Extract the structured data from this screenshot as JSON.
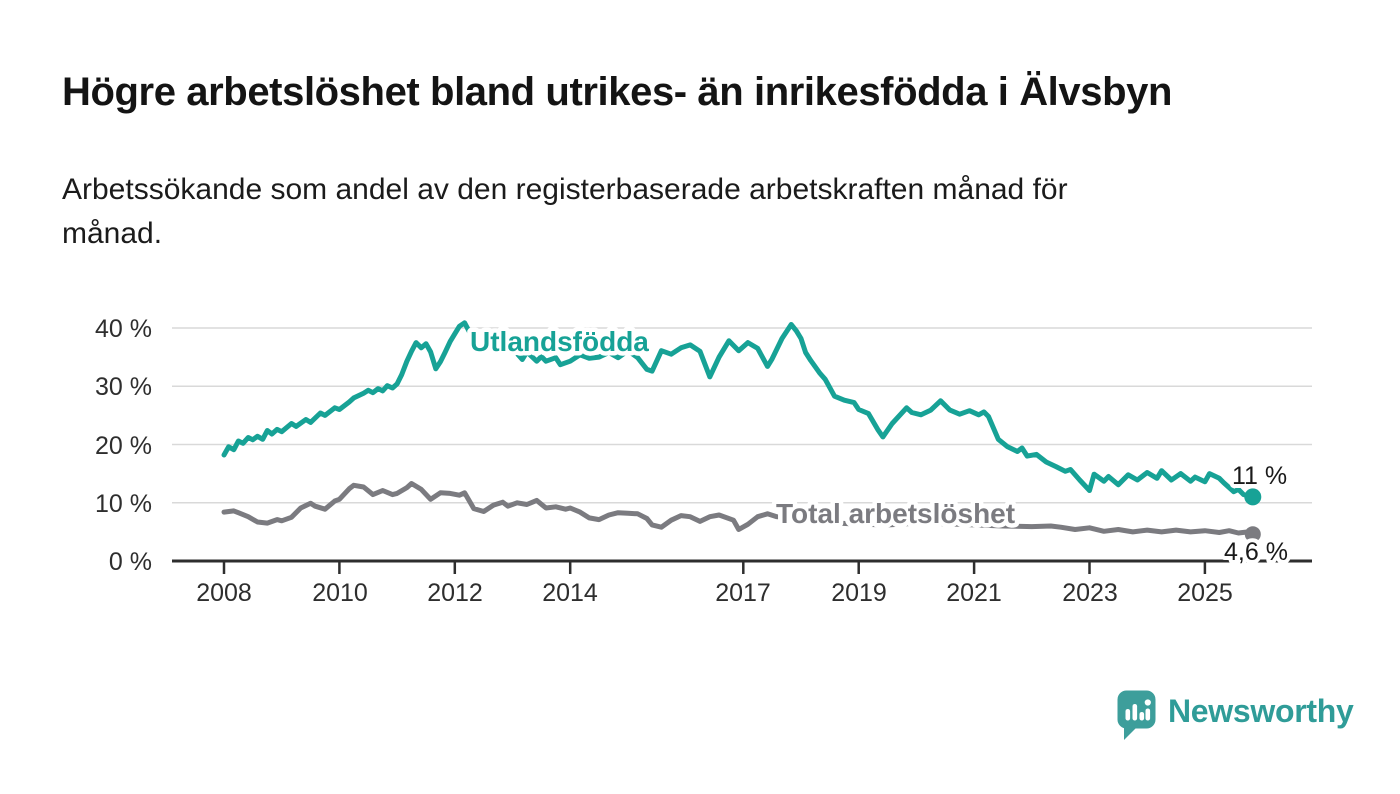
{
  "chart_data": {
    "type": "line",
    "title": "Högre arbetslöshet bland utrikes- än inrikesfödda i Älvsbyn",
    "subtitle": "Arbetssökande som andel av den registerbaserade arbetskraften månad för månad.",
    "subtitle_lines": [
      "Arbetssökande som andel av den registerbaserade arbetskraften månad för",
      "månad."
    ],
    "unit": "%",
    "x_tick_labels": [
      "2008",
      "2010",
      "2012",
      "2014",
      "2017",
      "2019",
      "2021",
      "2023",
      "2025"
    ],
    "x_ticks_years": [
      2008,
      2010,
      2012,
      2014,
      2017,
      2019,
      2021,
      2023,
      2025
    ],
    "y_tick_labels": [
      "40 %",
      "30 %",
      "20 %",
      "10 %",
      "0 %"
    ],
    "y_ticks": [
      40,
      30,
      20,
      10,
      0
    ],
    "ylim": [
      0,
      42
    ],
    "x_range": [
      2008.0,
      2025.92
    ],
    "grid_color": "#d9d9d9",
    "axis_color": "#2e2e2e",
    "series": [
      {
        "name": "Utlandsfödda",
        "line_label": "Utlandsfödda",
        "color": "#17A296",
        "end_label": "11 %",
        "last_value": 11.0,
        "points": [
          [
            2008.0,
            18.2
          ],
          [
            2008.08,
            19.6
          ],
          [
            2008.17,
            19.1
          ],
          [
            2008.25,
            20.6
          ],
          [
            2008.33,
            20.2
          ],
          [
            2008.42,
            21.2
          ],
          [
            2008.5,
            20.8
          ],
          [
            2008.58,
            21.4
          ],
          [
            2008.67,
            20.9
          ],
          [
            2008.75,
            22.4
          ],
          [
            2008.83,
            21.8
          ],
          [
            2008.92,
            22.6
          ],
          [
            2009.0,
            22.2
          ],
          [
            2009.17,
            23.6
          ],
          [
            2009.25,
            23.1
          ],
          [
            2009.42,
            24.3
          ],
          [
            2009.5,
            23.8
          ],
          [
            2009.67,
            25.4
          ],
          [
            2009.75,
            25.0
          ],
          [
            2009.92,
            26.3
          ],
          [
            2010.0,
            26.0
          ],
          [
            2010.17,
            27.3
          ],
          [
            2010.25,
            28.0
          ],
          [
            2010.42,
            28.8
          ],
          [
            2010.5,
            29.3
          ],
          [
            2010.58,
            28.9
          ],
          [
            2010.67,
            29.6
          ],
          [
            2010.75,
            29.2
          ],
          [
            2010.83,
            30.1
          ],
          [
            2010.92,
            29.7
          ],
          [
            2011.0,
            30.4
          ],
          [
            2011.08,
            32.0
          ],
          [
            2011.17,
            34.3
          ],
          [
            2011.25,
            36.0
          ],
          [
            2011.33,
            37.5
          ],
          [
            2011.42,
            36.6
          ],
          [
            2011.5,
            37.3
          ],
          [
            2011.58,
            35.9
          ],
          [
            2011.67,
            33.0
          ],
          [
            2011.75,
            34.2
          ],
          [
            2011.83,
            35.8
          ],
          [
            2011.92,
            37.7
          ],
          [
            2012.0,
            39.0
          ],
          [
            2012.08,
            40.3
          ],
          [
            2012.17,
            40.9
          ],
          [
            2012.25,
            39.4
          ],
          [
            2012.33,
            38.1
          ],
          [
            2012.42,
            38.8
          ],
          [
            2012.5,
            36.8
          ],
          [
            2012.58,
            38.3
          ],
          [
            2012.67,
            36.7
          ],
          [
            2012.75,
            37.2
          ],
          [
            2012.83,
            35.9
          ],
          [
            2012.92,
            37.3
          ],
          [
            2013.0,
            36.5
          ],
          [
            2013.17,
            34.6
          ],
          [
            2013.25,
            35.9
          ],
          [
            2013.42,
            34.3
          ],
          [
            2013.5,
            35.1
          ],
          [
            2013.58,
            34.3
          ],
          [
            2013.75,
            34.9
          ],
          [
            2013.83,
            33.7
          ],
          [
            2014.0,
            34.3
          ],
          [
            2014.17,
            35.4
          ],
          [
            2014.33,
            34.8
          ],
          [
            2014.5,
            35.0
          ],
          [
            2014.67,
            35.8
          ],
          [
            2014.83,
            34.9
          ],
          [
            2015.0,
            36.1
          ],
          [
            2015.17,
            34.9
          ],
          [
            2015.33,
            32.9
          ],
          [
            2015.42,
            32.6
          ],
          [
            2015.58,
            36.1
          ],
          [
            2015.75,
            35.5
          ],
          [
            2015.92,
            36.6
          ],
          [
            2016.08,
            37.1
          ],
          [
            2016.25,
            36.0
          ],
          [
            2016.42,
            31.6
          ],
          [
            2016.58,
            35.0
          ],
          [
            2016.75,
            37.8
          ],
          [
            2016.92,
            36.1
          ],
          [
            2017.08,
            37.5
          ],
          [
            2017.25,
            36.5
          ],
          [
            2017.42,
            33.4
          ],
          [
            2017.5,
            34.7
          ],
          [
            2017.67,
            38.2
          ],
          [
            2017.83,
            40.6
          ],
          [
            2017.92,
            39.5
          ],
          [
            2018.0,
            38.2
          ],
          [
            2018.08,
            35.8
          ],
          [
            2018.17,
            34.4
          ],
          [
            2018.33,
            32.2
          ],
          [
            2018.42,
            31.2
          ],
          [
            2018.58,
            28.3
          ],
          [
            2018.75,
            27.6
          ],
          [
            2018.92,
            27.2
          ],
          [
            2019.0,
            26.0
          ],
          [
            2019.17,
            25.3
          ],
          [
            2019.33,
            22.6
          ],
          [
            2019.42,
            21.3
          ],
          [
            2019.58,
            23.6
          ],
          [
            2019.83,
            26.3
          ],
          [
            2019.92,
            25.5
          ],
          [
            2020.08,
            25.1
          ],
          [
            2020.25,
            25.9
          ],
          [
            2020.42,
            27.5
          ],
          [
            2020.58,
            25.9
          ],
          [
            2020.75,
            25.2
          ],
          [
            2020.92,
            25.8
          ],
          [
            2021.08,
            25.1
          ],
          [
            2021.17,
            25.6
          ],
          [
            2021.25,
            24.8
          ],
          [
            2021.42,
            20.9
          ],
          [
            2021.58,
            19.6
          ],
          [
            2021.75,
            18.8
          ],
          [
            2021.83,
            19.4
          ],
          [
            2021.92,
            18.0
          ],
          [
            2022.08,
            18.3
          ],
          [
            2022.25,
            17.0
          ],
          [
            2022.42,
            16.2
          ],
          [
            2022.58,
            15.4
          ],
          [
            2022.67,
            15.7
          ],
          [
            2022.83,
            13.9
          ],
          [
            2023.0,
            12.1
          ],
          [
            2023.08,
            14.9
          ],
          [
            2023.25,
            13.7
          ],
          [
            2023.33,
            14.5
          ],
          [
            2023.5,
            13.1
          ],
          [
            2023.67,
            14.8
          ],
          [
            2023.83,
            13.9
          ],
          [
            2024.0,
            15.2
          ],
          [
            2024.17,
            14.2
          ],
          [
            2024.25,
            15.5
          ],
          [
            2024.42,
            13.9
          ],
          [
            2024.58,
            15.0
          ],
          [
            2024.75,
            13.7
          ],
          [
            2024.83,
            14.4
          ],
          [
            2025.0,
            13.6
          ],
          [
            2025.08,
            15.0
          ],
          [
            2025.25,
            14.2
          ],
          [
            2025.33,
            13.4
          ],
          [
            2025.5,
            11.9
          ],
          [
            2025.58,
            12.3
          ],
          [
            2025.67,
            11.4
          ],
          [
            2025.83,
            11.0
          ]
        ]
      },
      {
        "name": "Total arbetslöshet",
        "line_label": "Total arbetslöshet",
        "color": "#7B7B80",
        "end_label": "4,6 %",
        "last_value": 4.6,
        "points": [
          [
            2008.0,
            8.4
          ],
          [
            2008.17,
            8.6
          ],
          [
            2008.25,
            8.3
          ],
          [
            2008.42,
            7.6
          ],
          [
            2008.58,
            6.7
          ],
          [
            2008.75,
            6.5
          ],
          [
            2008.92,
            7.1
          ],
          [
            2009.0,
            6.9
          ],
          [
            2009.17,
            7.5
          ],
          [
            2009.33,
            9.1
          ],
          [
            2009.5,
            9.9
          ],
          [
            2009.58,
            9.4
          ],
          [
            2009.75,
            8.9
          ],
          [
            2009.92,
            10.3
          ],
          [
            2010.0,
            10.6
          ],
          [
            2010.17,
            12.4
          ],
          [
            2010.25,
            13.0
          ],
          [
            2010.42,
            12.7
          ],
          [
            2010.58,
            11.4
          ],
          [
            2010.75,
            12.1
          ],
          [
            2010.92,
            11.4
          ],
          [
            2011.0,
            11.6
          ],
          [
            2011.17,
            12.6
          ],
          [
            2011.25,
            13.3
          ],
          [
            2011.42,
            12.3
          ],
          [
            2011.58,
            10.6
          ],
          [
            2011.75,
            11.7
          ],
          [
            2011.92,
            11.6
          ],
          [
            2012.08,
            11.3
          ],
          [
            2012.17,
            11.7
          ],
          [
            2012.33,
            9.0
          ],
          [
            2012.5,
            8.5
          ],
          [
            2012.67,
            9.6
          ],
          [
            2012.83,
            10.1
          ],
          [
            2012.92,
            9.4
          ],
          [
            2013.08,
            10.0
          ],
          [
            2013.25,
            9.7
          ],
          [
            2013.42,
            10.4
          ],
          [
            2013.58,
            9.1
          ],
          [
            2013.75,
            9.3
          ],
          [
            2013.92,
            8.9
          ],
          [
            2014.0,
            9.1
          ],
          [
            2014.17,
            8.4
          ],
          [
            2014.33,
            7.4
          ],
          [
            2014.5,
            7.1
          ],
          [
            2014.67,
            7.9
          ],
          [
            2014.83,
            8.3
          ],
          [
            2015.0,
            8.2
          ],
          [
            2015.17,
            8.1
          ],
          [
            2015.33,
            7.3
          ],
          [
            2015.42,
            6.2
          ],
          [
            2015.58,
            5.8
          ],
          [
            2015.75,
            7.0
          ],
          [
            2015.92,
            7.8
          ],
          [
            2016.08,
            7.6
          ],
          [
            2016.25,
            6.8
          ],
          [
            2016.42,
            7.6
          ],
          [
            2016.58,
            7.9
          ],
          [
            2016.83,
            7.0
          ],
          [
            2016.92,
            5.4
          ],
          [
            2017.08,
            6.3
          ],
          [
            2017.25,
            7.6
          ],
          [
            2017.42,
            8.1
          ],
          [
            2017.58,
            7.6
          ],
          [
            2017.75,
            7.4
          ],
          [
            2018.0,
            7.0
          ],
          [
            2018.5,
            6.6
          ],
          [
            2019.0,
            6.3
          ],
          [
            2019.5,
            6.2
          ],
          [
            2020.0,
            6.5
          ],
          [
            2020.5,
            6.4
          ],
          [
            2021.0,
            6.2
          ],
          [
            2021.5,
            6.0
          ],
          [
            2022.0,
            5.9
          ],
          [
            2022.33,
            6.0
          ],
          [
            2022.5,
            5.8
          ],
          [
            2022.75,
            5.4
          ],
          [
            2023.0,
            5.7
          ],
          [
            2023.25,
            5.1
          ],
          [
            2023.5,
            5.4
          ],
          [
            2023.75,
            5.0
          ],
          [
            2024.0,
            5.3
          ],
          [
            2024.25,
            5.0
          ],
          [
            2024.5,
            5.3
          ],
          [
            2024.75,
            5.0
          ],
          [
            2025.0,
            5.2
          ],
          [
            2025.25,
            4.9
          ],
          [
            2025.42,
            5.2
          ],
          [
            2025.58,
            4.8
          ],
          [
            2025.75,
            5.0
          ],
          [
            2025.83,
            4.6
          ]
        ]
      }
    ]
  },
  "branding": {
    "wordmark": "Newsworthy",
    "logo_icon": "bar-chart-speech-bubble",
    "logo_color": "#3D9E9B",
    "wordmark_color": "#2F9C98"
  }
}
